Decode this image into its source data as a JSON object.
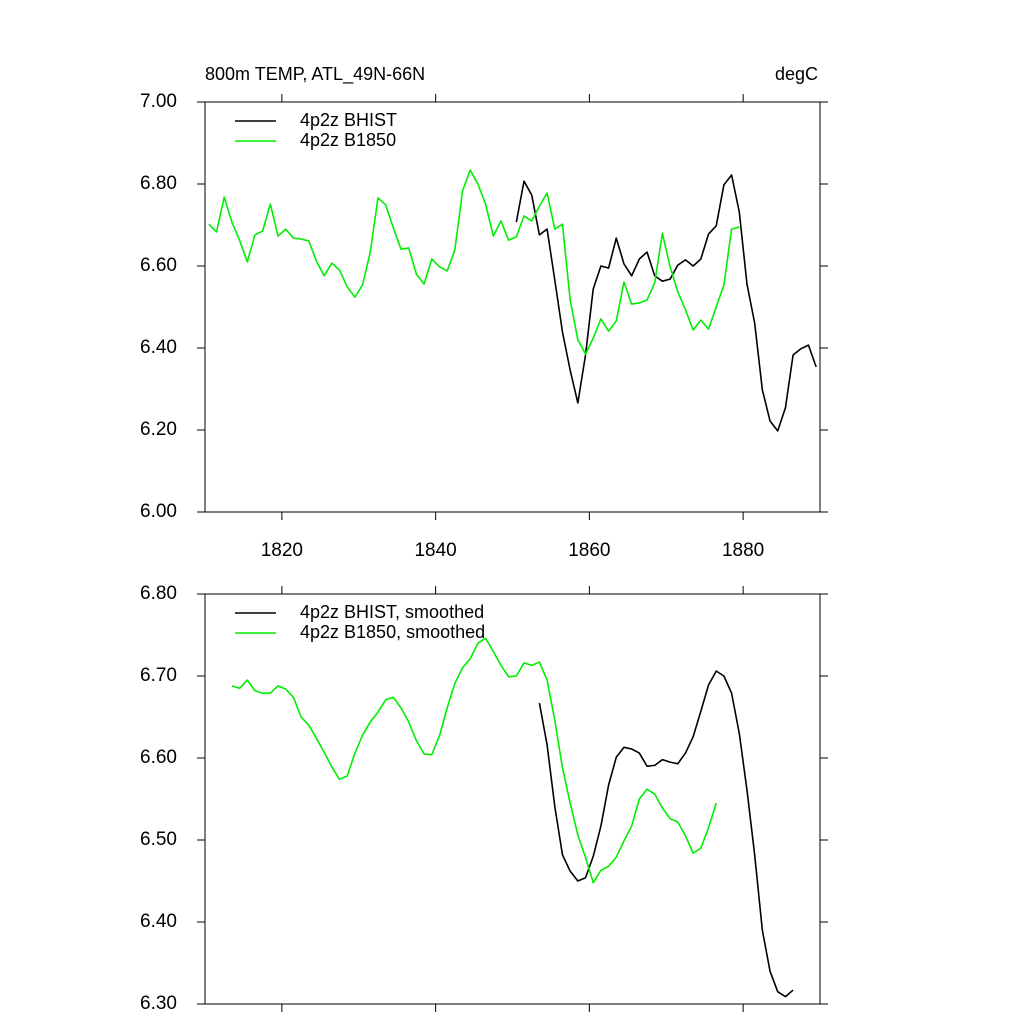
{
  "chart_data": [
    {
      "type": "line",
      "title": "800m TEMP, ATL_49N-66N",
      "units": "degC",
      "xlim": [
        1810,
        1890
      ],
      "xticks": [
        1820,
        1840,
        1860,
        1880
      ],
      "ylim": [
        6.0,
        7.0
      ],
      "yticks": [
        {
          "value": 6.0,
          "label": "6.00"
        },
        {
          "value": 6.2,
          "label": "6.20"
        },
        {
          "value": 6.4,
          "label": "6.40"
        },
        {
          "value": 6.6,
          "label": "6.60"
        },
        {
          "value": 6.8,
          "label": "6.80"
        },
        {
          "value": 7.0,
          "label": "7.00"
        }
      ],
      "x": [
        1810.5,
        1811.5,
        1812.5,
        1813.5,
        1814.5,
        1815.5,
        1816.5,
        1817.5,
        1818.5,
        1819.5,
        1820.5,
        1821.5,
        1822.5,
        1823.5,
        1824.5,
        1825.5,
        1826.5,
        1827.5,
        1828.5,
        1829.5,
        1830.5,
        1831.5,
        1832.5,
        1833.5,
        1834.5,
        1835.5,
        1836.5,
        1837.5,
        1838.5,
        1839.5,
        1840.5,
        1841.5,
        1842.5,
        1843.5,
        1844.5,
        1845.5,
        1846.5,
        1847.5,
        1848.5,
        1849.5,
        1850.5,
        1851.5,
        1852.5,
        1853.5,
        1854.5,
        1855.5,
        1856.5,
        1857.5,
        1858.5,
        1859.5,
        1860.5,
        1861.5,
        1862.5,
        1863.5,
        1864.5,
        1865.5,
        1866.5,
        1867.5,
        1868.5,
        1869.5,
        1870.5,
        1871.5,
        1872.5,
        1873.5,
        1874.5,
        1875.5,
        1876.5,
        1877.5,
        1878.5,
        1879.5,
        1880.5,
        1881.5,
        1882.5,
        1883.5,
        1884.5,
        1885.5,
        1886.5,
        1887.5,
        1888.5,
        1889.5
      ],
      "series": [
        {
          "name": "4p2z BHIST",
          "color": "#000000",
          "values": [
            null,
            null,
            null,
            null,
            null,
            null,
            null,
            null,
            null,
            null,
            null,
            null,
            null,
            null,
            null,
            null,
            null,
            null,
            null,
            null,
            null,
            null,
            null,
            null,
            null,
            null,
            null,
            null,
            null,
            null,
            null,
            null,
            null,
            null,
            null,
            null,
            null,
            null,
            null,
            null,
            6.707,
            6.807,
            6.773,
            6.676,
            6.69,
            6.566,
            6.439,
            6.346,
            6.266,
            6.383,
            6.544,
            6.6,
            6.595,
            6.668,
            6.605,
            6.576,
            6.617,
            6.634,
            6.576,
            6.563,
            6.568,
            6.602,
            6.615,
            6.6,
            6.617,
            6.678,
            6.698,
            6.798,
            6.822,
            6.732,
            6.556,
            6.461,
            6.298,
            6.222,
            6.198,
            6.254,
            6.383,
            6.398,
            6.407,
            6.354
          ]
        },
        {
          "name": "4p2z B1850",
          "color": "#00ee00",
          "values": [
            6.702,
            6.683,
            6.768,
            6.707,
            6.663,
            6.61,
            6.676,
            6.685,
            6.751,
            6.673,
            6.69,
            6.668,
            6.666,
            6.661,
            6.612,
            6.576,
            6.607,
            6.59,
            6.549,
            6.524,
            6.554,
            6.634,
            6.766,
            6.749,
            6.693,
            6.641,
            6.644,
            6.58,
            6.556,
            6.617,
            6.598,
            6.588,
            6.639,
            6.783,
            6.834,
            6.8,
            6.751,
            6.673,
            6.71,
            6.663,
            6.671,
            6.722,
            6.71,
            6.746,
            6.778,
            6.69,
            6.702,
            6.517,
            6.42,
            6.385,
            6.424,
            6.471,
            6.441,
            6.466,
            6.561,
            6.507,
            6.51,
            6.517,
            6.559,
            6.68,
            6.598,
            6.537,
            6.493,
            6.444,
            6.468,
            6.446,
            6.5,
            6.554,
            6.69,
            6.695,
            null,
            null,
            null,
            null,
            null,
            null,
            null,
            null,
            null,
            null
          ]
        }
      ]
    },
    {
      "type": "line",
      "xlim": [
        1810,
        1890
      ],
      "xticks": [
        1820,
        1840,
        1860,
        1880
      ],
      "ylim": [
        6.3,
        6.8
      ],
      "yticks": [
        {
          "value": 6.3,
          "label": "6.30"
        },
        {
          "value": 6.4,
          "label": "6.40"
        },
        {
          "value": 6.5,
          "label": "6.50"
        },
        {
          "value": 6.6,
          "label": "6.60"
        },
        {
          "value": 6.7,
          "label": "6.70"
        },
        {
          "value": 6.8,
          "label": "6.80"
        }
      ],
      "x": [
        1813.5,
        1814.5,
        1815.5,
        1816.5,
        1817.5,
        1818.5,
        1819.5,
        1820.5,
        1821.5,
        1822.5,
        1823.5,
        1824.5,
        1825.5,
        1826.5,
        1827.5,
        1828.5,
        1829.5,
        1830.5,
        1831.5,
        1832.5,
        1833.5,
        1834.5,
        1835.5,
        1836.5,
        1837.5,
        1838.5,
        1839.5,
        1840.5,
        1841.5,
        1842.5,
        1843.5,
        1844.5,
        1845.5,
        1846.5,
        1847.5,
        1848.5,
        1849.5,
        1850.5,
        1851.5,
        1852.5,
        1853.5,
        1854.5,
        1855.5,
        1856.5,
        1857.5,
        1858.5,
        1859.5,
        1860.5,
        1861.5,
        1862.5,
        1863.5,
        1864.5,
        1865.5,
        1866.5,
        1867.5,
        1868.5,
        1869.5,
        1870.5,
        1871.5,
        1872.5,
        1873.5,
        1874.5,
        1875.5,
        1876.5,
        1877.5,
        1878.5,
        1879.5,
        1880.5,
        1881.5,
        1882.5,
        1883.5,
        1884.5,
        1885.5,
        1886.5
      ],
      "series": [
        {
          "name": "4p2z BHIST, smoothed",
          "color": "#000000",
          "values": [
            null,
            null,
            null,
            null,
            null,
            null,
            null,
            null,
            null,
            null,
            null,
            null,
            null,
            null,
            null,
            null,
            null,
            null,
            null,
            null,
            null,
            null,
            null,
            null,
            null,
            null,
            null,
            null,
            null,
            null,
            null,
            null,
            null,
            null,
            null,
            null,
            null,
            null,
            null,
            null,
            6.667,
            6.616,
            6.541,
            6.482,
            6.462,
            6.45,
            6.454,
            6.48,
            6.517,
            6.567,
            6.601,
            6.613,
            6.611,
            6.606,
            6.59,
            6.591,
            6.598,
            6.595,
            6.593,
            6.606,
            6.626,
            6.657,
            6.689,
            6.706,
            6.7,
            6.679,
            6.63,
            6.561,
            6.482,
            6.39,
            6.34,
            6.315,
            6.309,
            6.317
          ]
        },
        {
          "name": "4p2z B1850, smoothed",
          "color": "#00ee00",
          "values": [
            6.688,
            6.685,
            6.695,
            6.682,
            6.679,
            6.679,
            6.688,
            6.684,
            6.674,
            6.65,
            6.64,
            6.624,
            6.607,
            6.589,
            6.574,
            6.578,
            6.606,
            6.628,
            6.644,
            6.656,
            6.671,
            6.674,
            6.661,
            6.644,
            6.621,
            6.605,
            6.604,
            6.627,
            6.661,
            6.691,
            6.71,
            6.721,
            6.74,
            6.746,
            6.73,
            6.713,
            6.699,
            6.7,
            6.716,
            6.713,
            6.717,
            6.695,
            6.646,
            6.588,
            6.545,
            6.506,
            6.479,
            6.448,
            6.463,
            6.468,
            6.479,
            6.499,
            6.517,
            6.55,
            6.562,
            6.556,
            6.539,
            6.526,
            6.522,
            6.505,
            6.484,
            6.49,
            6.515,
            6.545,
            null,
            null,
            null,
            null,
            null,
            null,
            null,
            null,
            null,
            null
          ]
        }
      ]
    }
  ]
}
